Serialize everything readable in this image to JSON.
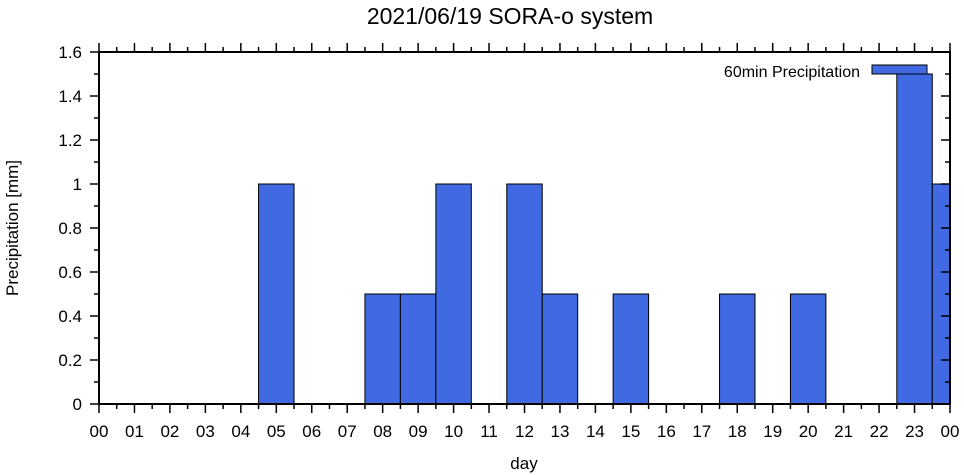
{
  "chart_data": {
    "type": "bar",
    "title": "2021/06/19 SORA-o system",
    "xlabel": "day",
    "ylabel": "Precipitation [mm]",
    "ylim": [
      0,
      1.6
    ],
    "xlim": [
      0,
      24
    ],
    "yticks": [
      0,
      0.2,
      0.4,
      0.6,
      0.8,
      1,
      1.2,
      1.4,
      1.6
    ],
    "ytick_labels": [
      "0",
      "0.2",
      "0.4",
      "0.6",
      "0.8",
      "1",
      "1.2",
      "1.4",
      "1.6"
    ],
    "xtick_labels": [
      "00",
      "01",
      "02",
      "03",
      "04",
      "05",
      "06",
      "07",
      "08",
      "09",
      "10",
      "11",
      "12",
      "13",
      "14",
      "15",
      "16",
      "17",
      "18",
      "19",
      "20",
      "21",
      "22",
      "23",
      "00"
    ],
    "legend": {
      "label": "60min Precipitation",
      "position": "top-right"
    },
    "bar_color": "#4169e1",
    "series": [
      {
        "name": "60min Precipitation",
        "x": [
          0,
          1,
          2,
          3,
          4,
          5,
          6,
          7,
          8,
          9,
          10,
          11,
          12,
          13,
          14,
          15,
          16,
          17,
          18,
          19,
          20,
          21,
          22,
          23,
          24
        ],
        "values": [
          0,
          0,
          0,
          0,
          0,
          1,
          0,
          0,
          0.5,
          0.5,
          1,
          0,
          1,
          0.5,
          0,
          0.5,
          0,
          0,
          0.5,
          0,
          0.5,
          0,
          0,
          1.5,
          1
        ]
      }
    ]
  }
}
